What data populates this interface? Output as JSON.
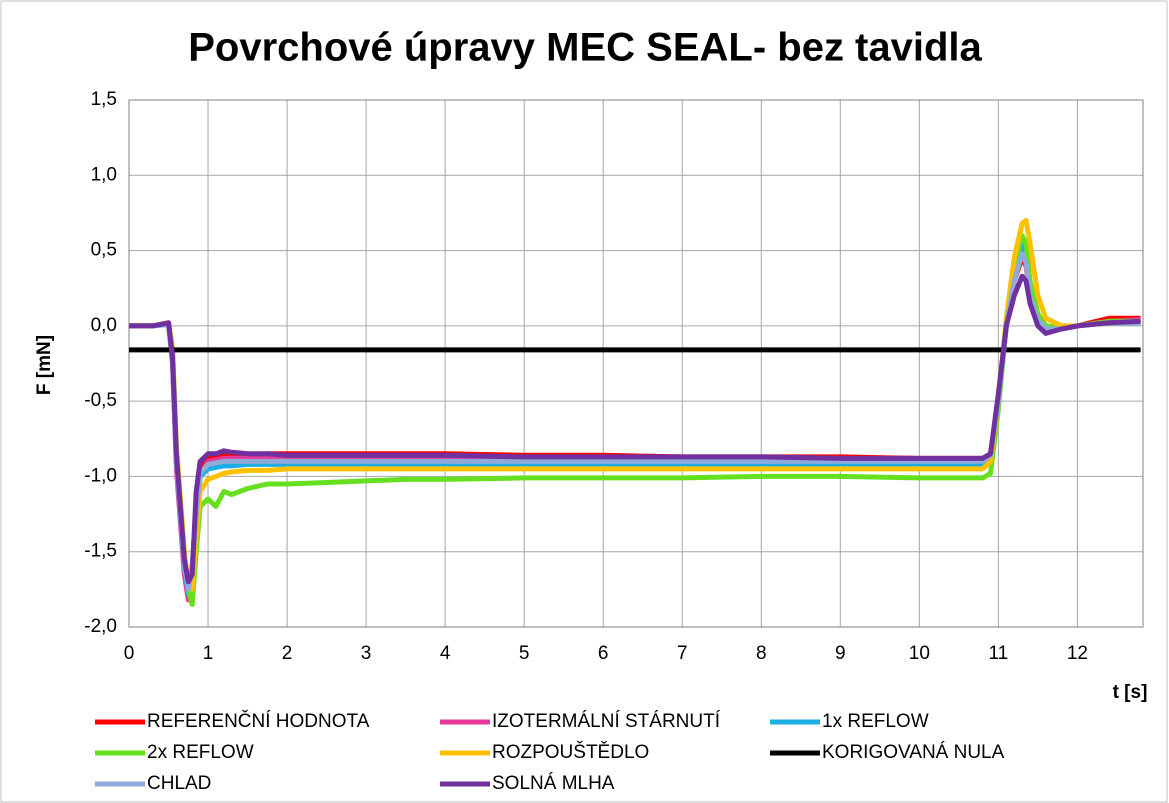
{
  "chart_data": {
    "type": "line",
    "title": "Povrchové úpravy MEC SEAL- bez tavidla",
    "y_label": "F [mN]",
    "x_label": "t [s]",
    "xlim": [
      0,
      12.83
    ],
    "ylim": [
      -2.0,
      1.5
    ],
    "xticks": [
      0,
      1,
      2,
      3,
      4,
      5,
      6,
      7,
      8,
      9,
      10,
      11,
      12
    ],
    "yticks": [
      {
        "value": 1.5,
        "label": "1,5"
      },
      {
        "value": 1.0,
        "label": "1,0"
      },
      {
        "value": 0.5,
        "label": "0,5"
      },
      {
        "value": 0.0,
        "label": "0,0"
      },
      {
        "value": -0.5,
        "label": "-0,5"
      },
      {
        "value": -1.0,
        "label": "-1,0"
      },
      {
        "value": -1.5,
        "label": "-1,5"
      },
      {
        "value": -2.0,
        "label": "-2,0"
      }
    ],
    "grid": true,
    "legend": "bottom",
    "x": [
      0,
      0.3,
      0.5,
      0.55,
      0.6,
      0.7,
      0.75,
      0.8,
      0.85,
      0.9,
      1.0,
      1.1,
      1.2,
      1.3,
      1.5,
      1.75,
      2,
      2.5,
      3,
      3.5,
      4,
      5,
      6,
      7,
      8,
      9,
      10,
      10.8,
      10.9,
      11.0,
      11.1,
      11.2,
      11.3,
      11.35,
      11.4,
      11.5,
      11.6,
      11.8,
      12,
      12.4,
      12.8
    ],
    "series": [
      {
        "name": "REFERENČNÍ HODNOTA",
        "color": "#ff0000",
        "values": [
          0,
          0,
          0.02,
          -0.2,
          -0.9,
          -1.6,
          -1.8,
          -1.6,
          -1.2,
          -0.95,
          -0.88,
          -0.87,
          -0.86,
          -0.85,
          -0.86,
          -0.85,
          -0.85,
          -0.85,
          -0.85,
          -0.85,
          -0.85,
          -0.86,
          -0.86,
          -0.87,
          -0.87,
          -0.87,
          -0.88,
          -0.88,
          -0.85,
          -0.5,
          0,
          0.3,
          0.45,
          0.4,
          0.2,
          0.05,
          -0.02,
          -0.02,
          0,
          0.05,
          0.05
        ]
      },
      {
        "name": "IZOTERMÁLNÍ STÁRNUTÍ",
        "color": "#e6399b",
        "values": [
          0,
          0,
          0.01,
          -0.25,
          -0.95,
          -1.65,
          -1.82,
          -1.65,
          -1.25,
          -1.0,
          -0.9,
          -0.89,
          -0.88,
          -0.88,
          -0.88,
          -0.88,
          -0.88,
          -0.88,
          -0.88,
          -0.88,
          -0.88,
          -0.89,
          -0.89,
          -0.89,
          -0.89,
          -0.89,
          -0.9,
          -0.9,
          -0.86,
          -0.5,
          0,
          0.3,
          0.5,
          0.42,
          0.2,
          0.04,
          -0.03,
          -0.02,
          0,
          0.03,
          0.04
        ]
      },
      {
        "name": "1x REFLOW",
        "color": "#1cade4",
        "values": [
          0,
          0,
          0.01,
          -0.22,
          -0.9,
          -1.6,
          -1.78,
          -1.6,
          -1.25,
          -1.0,
          -0.95,
          -0.94,
          -0.93,
          -0.93,
          -0.92,
          -0.92,
          -0.92,
          -0.92,
          -0.92,
          -0.92,
          -0.92,
          -0.92,
          -0.92,
          -0.92,
          -0.92,
          -0.92,
          -0.92,
          -0.92,
          -0.88,
          -0.5,
          0,
          0.35,
          0.55,
          0.5,
          0.25,
          0.06,
          -0.02,
          -0.02,
          0,
          0.02,
          0.02
        ]
      },
      {
        "name": "2x REFLOW",
        "color": "#66e01e",
        "values": [
          0,
          0,
          0.02,
          -0.15,
          -0.8,
          -1.5,
          -1.75,
          -1.85,
          -1.5,
          -1.2,
          -1.15,
          -1.2,
          -1.1,
          -1.12,
          -1.08,
          -1.05,
          -1.05,
          -1.04,
          -1.03,
          -1.02,
          -1.02,
          -1.01,
          -1.01,
          -1.01,
          -1.0,
          -1.0,
          -1.01,
          -1.01,
          -0.98,
          -0.55,
          0,
          0.4,
          0.6,
          0.55,
          0.3,
          0.08,
          0,
          -0.01,
          0,
          0.03,
          0.03
        ]
      },
      {
        "name": "ROZPOUŠTĚDLO",
        "color": "#ffc000",
        "values": [
          0,
          0,
          0.02,
          -0.15,
          -0.8,
          -1.5,
          -1.72,
          -1.75,
          -1.4,
          -1.1,
          -1.02,
          -1.0,
          -0.98,
          -0.97,
          -0.96,
          -0.96,
          -0.95,
          -0.95,
          -0.95,
          -0.95,
          -0.95,
          -0.95,
          -0.95,
          -0.95,
          -0.95,
          -0.95,
          -0.95,
          -0.95,
          -0.9,
          -0.5,
          0.05,
          0.45,
          0.68,
          0.7,
          0.55,
          0.2,
          0.05,
          0,
          0,
          0.02,
          0.03
        ]
      },
      {
        "name": "KORIGOVANÁ NULA",
        "color": "#000000",
        "values": [
          -0.16,
          -0.16,
          -0.16,
          -0.16,
          -0.16,
          -0.16,
          -0.16,
          -0.16,
          -0.16,
          -0.16,
          -0.16,
          -0.16,
          -0.16,
          -0.16,
          -0.16,
          -0.16,
          -0.16,
          -0.16,
          -0.16,
          -0.16,
          -0.16,
          -0.16,
          -0.16,
          -0.16,
          -0.16,
          -0.16,
          -0.16,
          -0.16,
          -0.16,
          -0.16,
          -0.16,
          -0.16,
          -0.16,
          -0.16,
          -0.16,
          -0.16,
          -0.16,
          -0.16,
          -0.16,
          -0.16,
          -0.16
        ]
      },
      {
        "name": "CHLAD",
        "color": "#8eaad8",
        "values": [
          0,
          0,
          0.01,
          -0.2,
          -0.9,
          -1.58,
          -1.75,
          -1.6,
          -1.25,
          -0.98,
          -0.92,
          -0.91,
          -0.9,
          -0.9,
          -0.9,
          -0.9,
          -0.9,
          -0.9,
          -0.9,
          -0.9,
          -0.9,
          -0.9,
          -0.9,
          -0.9,
          -0.9,
          -0.9,
          -0.9,
          -0.9,
          -0.86,
          -0.5,
          0,
          0.3,
          0.48,
          0.42,
          0.2,
          0.04,
          -0.02,
          -0.02,
          0,
          0.02,
          0.02
        ]
      },
      {
        "name": "SOLNÁ MLHA",
        "color": "#7030a0",
        "values": [
          0,
          0,
          0.02,
          -0.2,
          -0.85,
          -1.55,
          -1.7,
          -1.65,
          -1.1,
          -0.9,
          -0.85,
          -0.85,
          -0.83,
          -0.84,
          -0.85,
          -0.85,
          -0.86,
          -0.86,
          -0.86,
          -0.86,
          -0.86,
          -0.87,
          -0.87,
          -0.87,
          -0.87,
          -0.88,
          -0.88,
          -0.88,
          -0.85,
          -0.45,
          0,
          0.2,
          0.33,
          0.3,
          0.15,
          0,
          -0.05,
          -0.02,
          0,
          0.02,
          0.03
        ]
      }
    ]
  }
}
